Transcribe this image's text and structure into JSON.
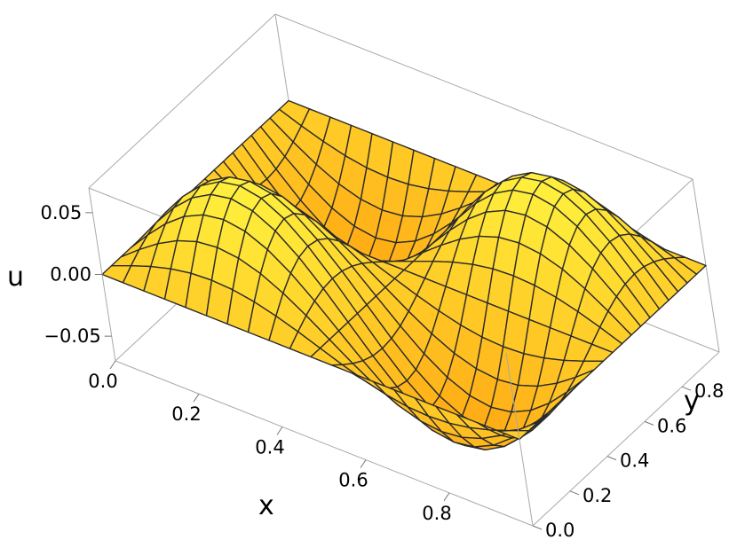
{
  "chart_data": {
    "type": "surface3d",
    "function": "u = 0.07·sin(2πx)·sin(2πy)",
    "series": [
      {
        "name": "",
        "values": []
      }
    ],
    "xlabel": "x",
    "ylabel": "y",
    "zlabel": "u",
    "x_range": [
      0,
      1
    ],
    "y_range": [
      0,
      1
    ],
    "z_range": [
      -0.07,
      0.07
    ],
    "x_ticks": [
      "0.0",
      "0.2",
      "0.4",
      "0.6",
      "0.8"
    ],
    "y_ticks": [
      "0.0",
      "0.2",
      "0.4",
      "0.6",
      "0.8"
    ],
    "z_ticks": [
      "−0.05",
      "0.00",
      "0.05"
    ],
    "mesh_lines": 20,
    "surface_color": "#ffcf33",
    "mesh_color": "#2b2b2b",
    "box_color": "#a9a9a9"
  }
}
